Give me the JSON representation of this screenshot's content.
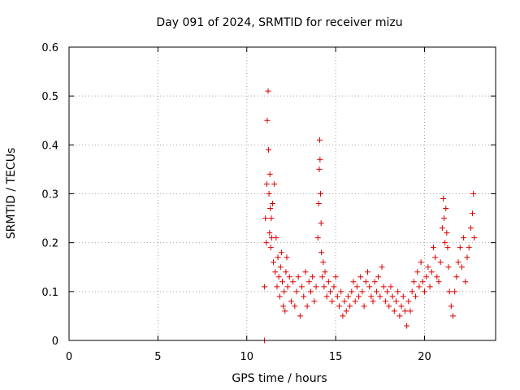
{
  "chart_data": {
    "type": "scatter",
    "title": "Day 091 of 2024, SRMTID for receiver mizu",
    "xlabel": "GPS time / hours",
    "ylabel": "SRMTID / TECUs",
    "xlim": [
      0,
      24
    ],
    "ylim": [
      0,
      0.6
    ],
    "xticks": [
      0,
      5,
      10,
      15,
      20
    ],
    "xtick_labels": [
      "0",
      "5",
      "10",
      "15",
      "20"
    ],
    "yticks": [
      0,
      0.1,
      0.2,
      0.3,
      0.4,
      0.5,
      0.6
    ],
    "ytick_labels": [
      "0",
      "0.1",
      "0.2",
      "0.3",
      "0.4",
      "0.5",
      "0.6"
    ],
    "grid": true,
    "marker": "plus",
    "color": "#dd0000",
    "series": [
      {
        "name": "SRMTID",
        "x": [
          11.0,
          11.0,
          11.05,
          11.1,
          11.12,
          11.15,
          11.2,
          11.22,
          11.25,
          11.28,
          11.3,
          11.32,
          11.35,
          11.38,
          11.4,
          11.45,
          11.5,
          11.55,
          11.6,
          11.65,
          11.7,
          11.75,
          11.8,
          11.85,
          11.9,
          11.95,
          12.0,
          12.05,
          12.1,
          12.15,
          12.2,
          12.25,
          12.3,
          12.4,
          12.5,
          12.6,
          12.7,
          12.8,
          12.9,
          13.0,
          13.1,
          13.2,
          13.3,
          13.4,
          13.5,
          13.6,
          13.7,
          13.8,
          13.9,
          14.0,
          14.05,
          14.08,
          14.1,
          14.12,
          14.15,
          14.18,
          14.2,
          14.25,
          14.3,
          14.35,
          14.4,
          14.5,
          14.6,
          14.7,
          14.8,
          14.9,
          15.0,
          15.1,
          15.2,
          15.3,
          15.4,
          15.5,
          15.6,
          15.7,
          15.8,
          15.9,
          16.0,
          16.1,
          16.2,
          16.3,
          16.4,
          16.5,
          16.6,
          16.7,
          16.8,
          16.9,
          17.0,
          17.1,
          17.2,
          17.3,
          17.4,
          17.5,
          17.6,
          17.7,
          17.8,
          17.9,
          18.0,
          18.1,
          18.2,
          18.3,
          18.4,
          18.5,
          18.6,
          18.7,
          18.8,
          18.9,
          19.0,
          19.1,
          19.2,
          19.3,
          19.4,
          19.5,
          19.6,
          19.7,
          19.8,
          19.9,
          20.0,
          20.1,
          20.2,
          20.3,
          20.4,
          20.5,
          20.6,
          20.7,
          20.8,
          20.9,
          21.0,
          21.05,
          21.1,
          21.15,
          21.2,
          21.25,
          21.3,
          21.35,
          21.4,
          21.5,
          21.6,
          21.7,
          21.8,
          21.9,
          22.0,
          22.1,
          22.2,
          22.3,
          22.4,
          22.5,
          22.6,
          22.7,
          22.75,
          22.8
        ],
        "y": [
          0.0,
          0.11,
          0.25,
          0.2,
          0.32,
          0.45,
          0.51,
          0.39,
          0.3,
          0.22,
          0.34,
          0.27,
          0.19,
          0.25,
          0.21,
          0.28,
          0.16,
          0.32,
          0.14,
          0.21,
          0.11,
          0.17,
          0.13,
          0.09,
          0.15,
          0.18,
          0.12,
          0.07,
          0.1,
          0.06,
          0.14,
          0.17,
          0.11,
          0.13,
          0.08,
          0.12,
          0.07,
          0.1,
          0.13,
          0.05,
          0.11,
          0.09,
          0.14,
          0.07,
          0.12,
          0.1,
          0.13,
          0.08,
          0.11,
          0.21,
          0.28,
          0.35,
          0.41,
          0.37,
          0.3,
          0.24,
          0.18,
          0.13,
          0.16,
          0.11,
          0.14,
          0.09,
          0.12,
          0.1,
          0.08,
          0.11,
          0.13,
          0.09,
          0.07,
          0.1,
          0.05,
          0.08,
          0.06,
          0.09,
          0.07,
          0.1,
          0.12,
          0.08,
          0.11,
          0.09,
          0.13,
          0.1,
          0.07,
          0.12,
          0.14,
          0.11,
          0.09,
          0.08,
          0.12,
          0.1,
          0.13,
          0.09,
          0.15,
          0.11,
          0.08,
          0.1,
          0.07,
          0.11,
          0.09,
          0.06,
          0.08,
          0.1,
          0.05,
          0.07,
          0.09,
          0.06,
          0.03,
          0.08,
          0.06,
          0.1,
          0.12,
          0.09,
          0.14,
          0.11,
          0.16,
          0.12,
          0.1,
          0.13,
          0.15,
          0.11,
          0.14,
          0.19,
          0.17,
          0.13,
          0.12,
          0.16,
          0.23,
          0.29,
          0.25,
          0.2,
          0.27,
          0.22,
          0.19,
          0.15,
          0.1,
          0.07,
          0.05,
          0.1,
          0.13,
          0.16,
          0.19,
          0.15,
          0.21,
          0.12,
          0.17,
          0.19,
          0.23,
          0.26,
          0.3,
          0.21
        ]
      }
    ]
  }
}
